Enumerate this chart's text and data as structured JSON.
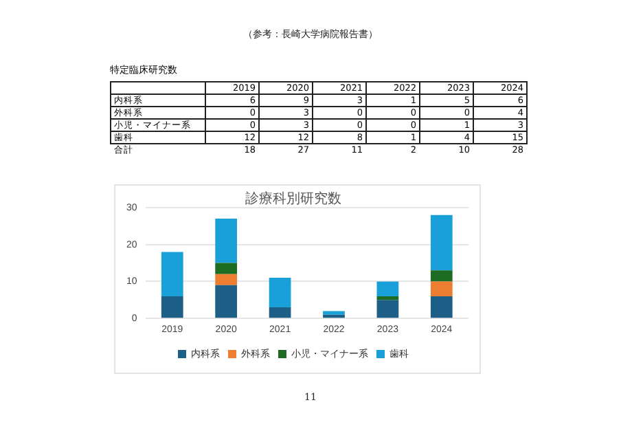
{
  "chart_data": [
    {
      "type": "heatmap",
      "title": "特定臨床研究数",
      "annotations": [
        "（参考：長崎大学病院報告書）"
      ],
      "categories": [
        "2019",
        "2020",
        "2021",
        "2022",
        "2023",
        "2024"
      ],
      "y_categories": [
        "内科系",
        "外科系",
        "小児・マイナー系",
        "歯科",
        "合計"
      ],
      "cells": [
        [
          6,
          9,
          3,
          1,
          5,
          6
        ],
        [
          0,
          3,
          0,
          0,
          0,
          4
        ],
        [
          0,
          3,
          0,
          0,
          1,
          3
        ],
        [
          12,
          12,
          8,
          1,
          4,
          15
        ],
        [
          18,
          27,
          11,
          2,
          10,
          28
        ]
      ],
      "data_labels": true
    },
    {
      "type": "bar",
      "title": "診療科別研究数",
      "annotations": [
        "11"
      ],
      "categories": [
        "2019",
        "2020",
        "2021",
        "2022",
        "2023",
        "2024"
      ],
      "series": [
        {
          "name": "内科系",
          "color": "#1d5f86",
          "values": [
            6,
            9,
            3,
            1,
            5,
            6
          ]
        },
        {
          "name": "外科系",
          "color": "#ed7d31",
          "values": [
            0,
            3,
            0,
            0,
            0,
            4
          ]
        },
        {
          "name": "小児・マイナー系",
          "color": "#1e6b23",
          "values": [
            0,
            3,
            0,
            0,
            1,
            3
          ]
        },
        {
          "name": "歯科",
          "color": "#1aa0d8",
          "values": [
            12,
            12,
            8,
            1,
            4,
            15
          ]
        }
      ],
      "stacked": true,
      "ylim": [
        0,
        30
      ],
      "yticks": [
        0,
        10,
        20,
        30
      ],
      "grid": "y",
      "legend": "bottom"
    }
  ]
}
